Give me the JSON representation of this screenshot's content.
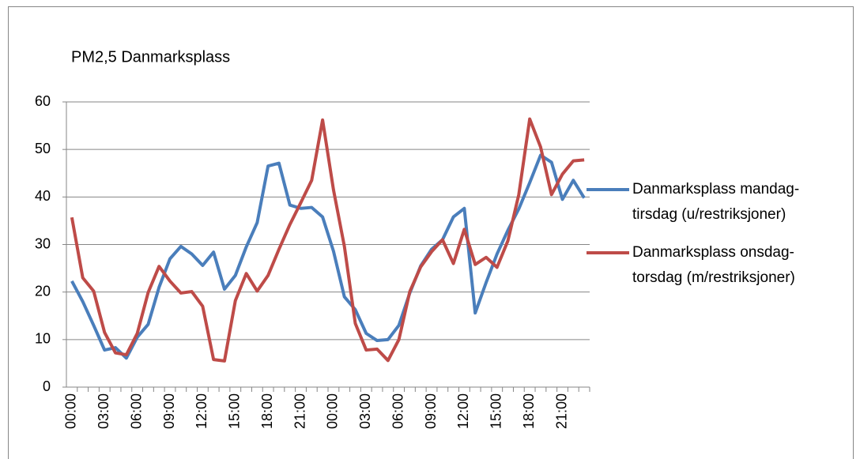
{
  "chart_data": {
    "type": "line",
    "title": "PM2,5 Danmarksplass",
    "categories": [
      "00:00",
      null,
      null,
      "03:00",
      null,
      null,
      "06:00",
      null,
      null,
      "09:00",
      null,
      null,
      "12:00",
      null,
      null,
      "15:00",
      null,
      null,
      "18:00",
      null,
      null,
      "21:00",
      null,
      null,
      "00:00",
      null,
      null,
      "03:00",
      null,
      null,
      "06:00",
      null,
      null,
      "09:00",
      null,
      null,
      "12:00",
      null,
      null,
      "15:00",
      null,
      null,
      "18:00",
      null,
      null,
      "21:00",
      null,
      null
    ],
    "series": [
      {
        "name": "Danmarksplass mandag-tirsdag (u/restriksjoner)",
        "color": "#4a7ebb",
        "values": [
          22.3,
          18,
          13,
          7.8,
          8.3,
          6.1,
          10.5,
          13.2,
          21,
          27,
          29.6,
          28,
          25.6,
          28.4,
          20.6,
          23.5,
          29.5,
          34.6,
          46.5,
          47.1,
          38.3,
          37.6,
          37.8,
          35.8,
          28.6,
          19,
          16.3,
          11.3,
          9.8,
          10,
          13,
          19.8,
          25.5,
          29,
          31,
          35.8,
          37.6,
          15.6,
          22,
          28,
          33,
          37.5,
          43,
          48.8,
          47.3,
          39.5,
          43.5,
          39.8
        ]
      },
      {
        "name": "Danmarksplass onsdag-torsdag (m/restriksjoner)",
        "color": "#be4b48",
        "values": [
          35.7,
          23,
          20.2,
          11.5,
          7.2,
          6.8,
          11.3,
          19.9,
          25.4,
          22.3,
          19.8,
          20.1,
          17,
          5.8,
          5.5,
          18.2,
          23.9,
          20.2,
          23.5,
          29,
          34.2,
          38.8,
          43.5,
          56.2,
          41.5,
          29.6,
          13.4,
          7.8,
          8,
          5.6,
          10,
          20.1,
          25.3,
          28.5,
          31,
          26,
          33.2,
          25.8,
          27.3,
          25.2,
          30.8,
          40.5,
          56.4,
          50.5,
          40.5,
          44.8,
          47.6,
          47.8
        ]
      }
    ],
    "ylim": [
      0,
      60
    ],
    "yticks": [
      0,
      10,
      20,
      30,
      40,
      50,
      60
    ],
    "grid": true,
    "legend": "right"
  }
}
